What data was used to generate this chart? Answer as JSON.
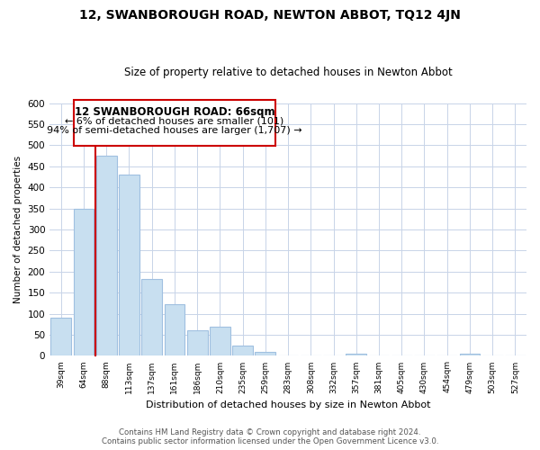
{
  "title": "12, SWANBOROUGH ROAD, NEWTON ABBOT, TQ12 4JN",
  "subtitle": "Size of property relative to detached houses in Newton Abbot",
  "xlabel": "Distribution of detached houses by size in Newton Abbot",
  "ylabel": "Number of detached properties",
  "bar_labels": [
    "39sqm",
    "64sqm",
    "88sqm",
    "113sqm",
    "137sqm",
    "161sqm",
    "186sqm",
    "210sqm",
    "235sqm",
    "259sqm",
    "283sqm",
    "308sqm",
    "332sqm",
    "357sqm",
    "381sqm",
    "405sqm",
    "430sqm",
    "454sqm",
    "479sqm",
    "503sqm",
    "527sqm"
  ],
  "bar_values": [
    90,
    350,
    475,
    430,
    182,
    123,
    60,
    70,
    25,
    10,
    0,
    0,
    0,
    5,
    0,
    0,
    0,
    0,
    5,
    0,
    0
  ],
  "bar_color": "#c8dff0",
  "bar_edge_color": "#a0c0e0",
  "marker_color": "#cc0000",
  "ylim": [
    0,
    600
  ],
  "yticks": [
    0,
    50,
    100,
    150,
    200,
    250,
    300,
    350,
    400,
    450,
    500,
    550,
    600
  ],
  "annotation_title": "12 SWANBOROUGH ROAD: 66sqm",
  "annotation_line1": "← 6% of detached houses are smaller (101)",
  "annotation_line2": "94% of semi-detached houses are larger (1,707) →",
  "footer_line1": "Contains HM Land Registry data © Crown copyright and database right 2024.",
  "footer_line2": "Contains public sector information licensed under the Open Government Licence v3.0.",
  "background_color": "#ffffff",
  "grid_color": "#c8d4e8"
}
